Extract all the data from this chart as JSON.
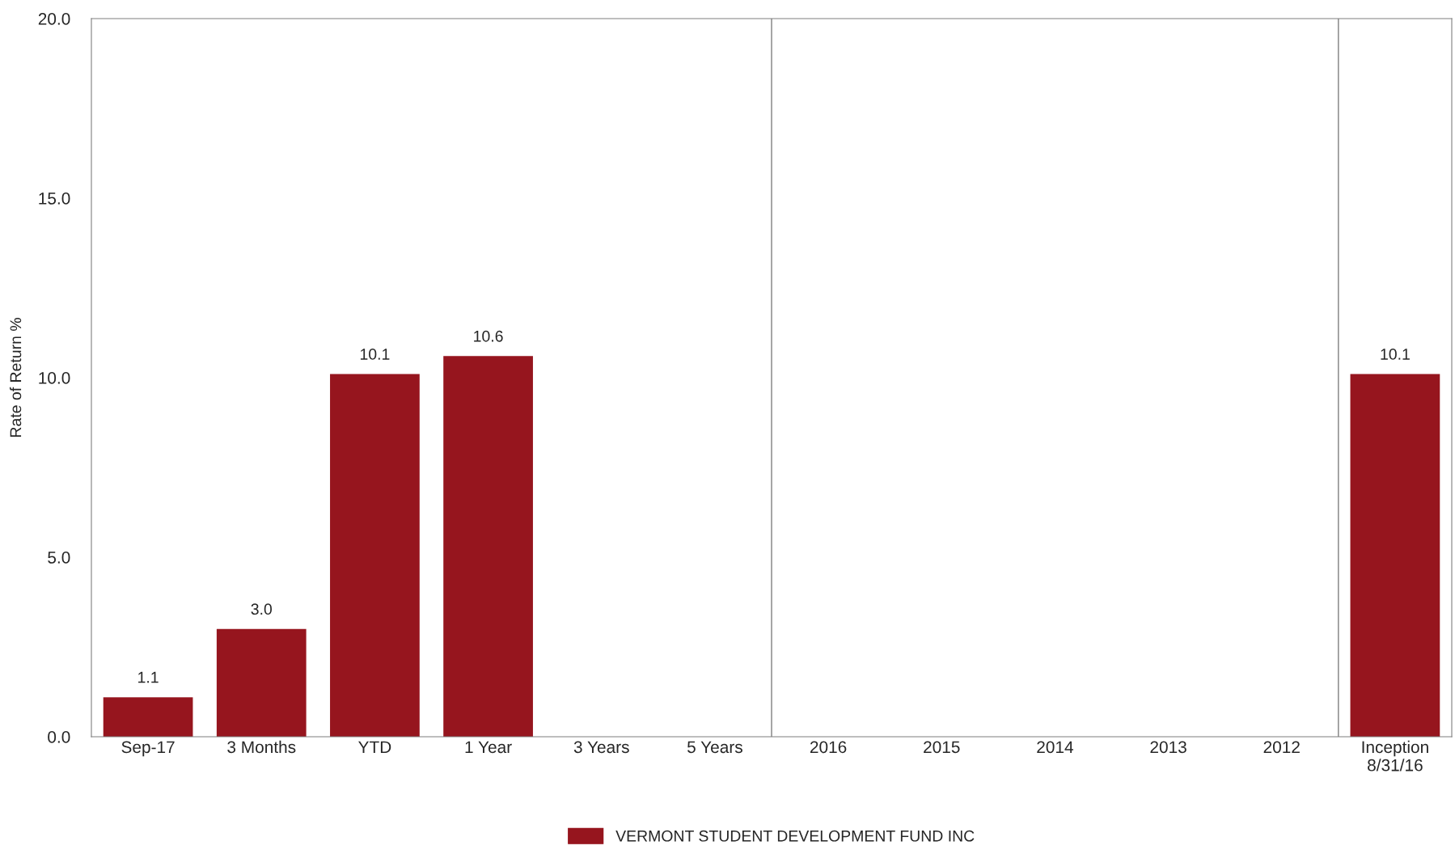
{
  "chart_data": {
    "type": "bar",
    "ylabel": "Rate of Return %",
    "categories": [
      "Sep-17",
      "3 Months",
      "YTD",
      "1 Year",
      "3 Years",
      "5 Years",
      "2016",
      "2015",
      "2014",
      "2013",
      "2012",
      "Inception\n8/31/16"
    ],
    "series": [
      {
        "name": "VERMONT STUDENT DEVELOPMENT FUND INC",
        "color": "#96151e",
        "values": [
          1.1,
          3.0,
          10.1,
          10.6,
          null,
          null,
          null,
          null,
          null,
          null,
          null,
          10.1
        ],
        "value_labels": [
          "1.1",
          "3.0",
          "10.1",
          "10.6",
          null,
          null,
          null,
          null,
          null,
          null,
          null,
          "10.1"
        ]
      }
    ],
    "ylim": [
      0,
      20
    ],
    "yticks": [
      {
        "value": 0,
        "label": "0.0"
      },
      {
        "value": 5,
        "label": "5.0"
      },
      {
        "value": 10,
        "label": "10.0"
      },
      {
        "value": 15,
        "label": "15.0"
      },
      {
        "value": 20,
        "label": "20.0"
      }
    ],
    "grid": false,
    "legend": "bottom"
  }
}
